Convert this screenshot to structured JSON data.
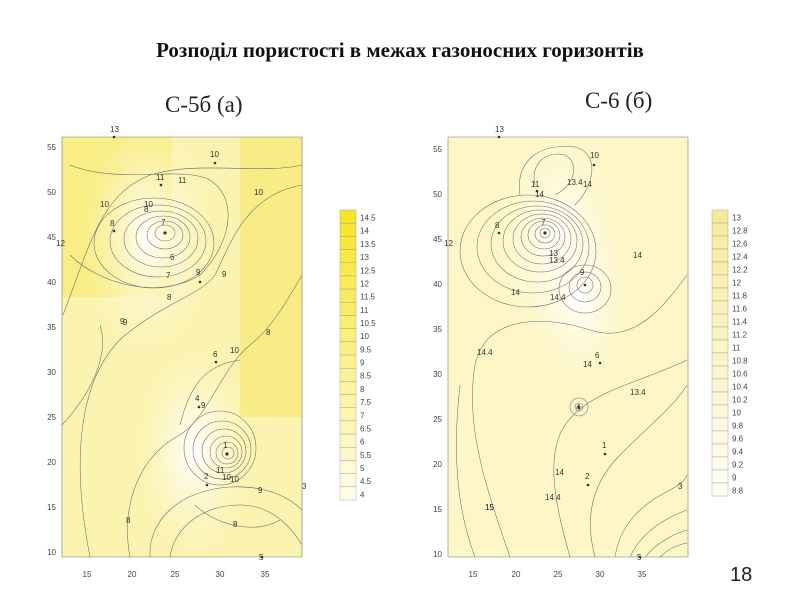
{
  "title": "Розподіл пористості в межах газоносних горизонтів",
  "slide_number": "18",
  "maps": [
    {
      "label": "С-5б (а)",
      "y_ticks": [
        "55",
        "50",
        "45",
        "40",
        "35",
        "30",
        "25",
        "20",
        "15",
        "10"
      ],
      "x_ticks": [
        "15",
        "20",
        "25",
        "30",
        "35"
      ],
      "wells": [
        {
          "id": "13"
        },
        {
          "id": "11"
        },
        {
          "id": "10"
        },
        {
          "id": "8"
        },
        {
          "id": "7"
        },
        {
          "id": "12"
        },
        {
          "id": "9"
        },
        {
          "id": "6"
        },
        {
          "id": "4"
        },
        {
          "id": "1"
        },
        {
          "id": "2"
        },
        {
          "id": "3"
        },
        {
          "id": "5"
        }
      ],
      "contour_labels": [
        "11",
        "10",
        "10",
        "10",
        "10",
        "9",
        "8",
        "7",
        "6",
        "8",
        "9",
        "9",
        "10",
        "9",
        "8",
        "9",
        "11",
        "10",
        "8",
        "8"
      ],
      "legend": [
        "14.5",
        "14",
        "13.5",
        "13",
        "12.5",
        "12",
        "11.5",
        "11",
        "10.5",
        "10",
        "9.5",
        "9",
        "8.5",
        "8",
        "7.5",
        "7",
        "6.5",
        "6",
        "5.5",
        "5",
        "4.5",
        "4"
      ]
    },
    {
      "label": "С-6 (б)",
      "y_ticks": [
        "55",
        "50",
        "45",
        "40",
        "35",
        "30",
        "25",
        "20",
        "15",
        "10"
      ],
      "x_ticks": [
        "15",
        "20",
        "25",
        "30",
        "35"
      ],
      "wells": [
        {
          "id": "13"
        },
        {
          "id": "11"
        },
        {
          "id": "10"
        },
        {
          "id": "8"
        },
        {
          "id": "7"
        },
        {
          "id": "12"
        },
        {
          "id": "9"
        },
        {
          "id": "6"
        },
        {
          "id": "4"
        },
        {
          "id": "1"
        },
        {
          "id": "2"
        },
        {
          "id": "3"
        },
        {
          "id": "5"
        }
      ],
      "contour_labels": [
        "15",
        "14",
        "13.4",
        "14",
        "13",
        "13.4",
        "14",
        "14",
        "14.4",
        "14.4",
        "14",
        "13.4",
        "14",
        "14.4",
        "15"
      ],
      "legend": [
        "13",
        "12.8",
        "12.6",
        "12.4",
        "12.2",
        "12",
        "11.8",
        "11.6",
        "11.4",
        "11.2",
        "11",
        "10.8",
        "10.6",
        "10.4",
        "10.2",
        "10",
        "9.8",
        "9.6",
        "9.4",
        "9.2",
        "9",
        "8.8"
      ]
    }
  ]
}
